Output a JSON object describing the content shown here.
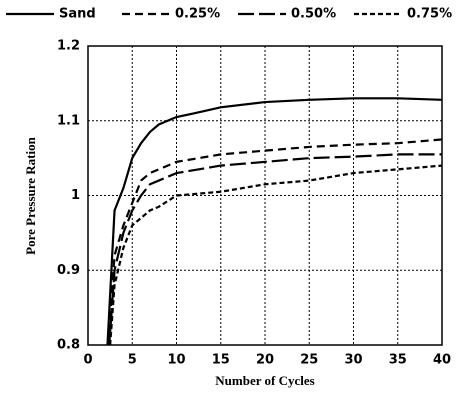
{
  "chart_data": {
    "type": "line",
    "xlabel": "Number of Cycles",
    "ylabel": "Pore Pressure Ration",
    "xlim": [
      0,
      40
    ],
    "xticks": [
      0,
      5,
      10,
      15,
      20,
      25,
      30,
      35,
      40
    ],
    "ylim": [
      0.8,
      1.2
    ],
    "yticks": [
      0.8,
      0.9,
      1,
      1.1,
      1.2
    ],
    "grid": true,
    "legend": "top",
    "series": [
      {
        "name": "Sand",
        "color": "#000000",
        "x": [
          2.2,
          3,
          4,
          5,
          6,
          7,
          8,
          10,
          12,
          15,
          20,
          25,
          30,
          35,
          40
        ],
        "values": [
          0.8,
          0.98,
          1.01,
          1.05,
          1.07,
          1.085,
          1.095,
          1.105,
          1.11,
          1.118,
          1.125,
          1.128,
          1.13,
          1.13,
          1.128
        ]
      },
      {
        "name": "0.25%",
        "color": "#000000",
        "x": [
          2.3,
          3,
          4,
          5,
          6,
          7,
          8,
          10,
          15,
          20,
          25,
          30,
          35,
          40
        ],
        "values": [
          0.8,
          0.92,
          0.96,
          0.99,
          1.02,
          1.03,
          1.035,
          1.045,
          1.055,
          1.06,
          1.065,
          1.068,
          1.07,
          1.075
        ]
      },
      {
        "name": "0.50%",
        "color": "#000000",
        "x": [
          2.4,
          3,
          4,
          5,
          6,
          7,
          8,
          10,
          15,
          20,
          25,
          30,
          35,
          40
        ],
        "values": [
          0.8,
          0.9,
          0.95,
          0.98,
          1.0,
          1.015,
          1.02,
          1.03,
          1.04,
          1.045,
          1.05,
          1.052,
          1.055,
          1.055
        ]
      },
      {
        "name": "0.75%",
        "color": "#000000",
        "x": [
          2.5,
          3,
          4,
          5,
          6,
          7,
          8,
          10,
          15,
          20,
          25,
          30,
          35,
          40
        ],
        "values": [
          0.8,
          0.88,
          0.93,
          0.96,
          0.97,
          0.98,
          0.985,
          1.0,
          1.005,
          1.015,
          1.02,
          1.03,
          1.035,
          1.04
        ]
      }
    ]
  }
}
